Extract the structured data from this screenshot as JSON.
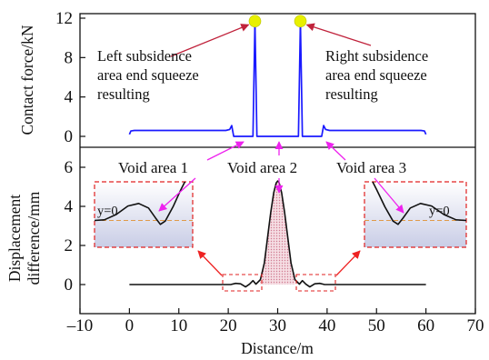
{
  "chart_data": [
    {
      "type": "line",
      "panel": "top",
      "ylabel": "Contact force/kN",
      "ylim": [
        0,
        12
      ],
      "yticks": [
        0,
        4,
        8,
        12
      ],
      "xlim": [
        -10,
        70
      ],
      "series": [
        {
          "color": "#1a1aff",
          "x": [
            0,
            0.3,
            1,
            19.5,
            20.3,
            20.7,
            21.1,
            24.6,
            25.0,
            25.4,
            25.8,
            26.2,
            33.8,
            34.2,
            34.6,
            35.0,
            35.4,
            38.9,
            39.3,
            39.7,
            40.5,
            59,
            59.7,
            60
          ],
          "y": [
            0.2,
            0.55,
            0.6,
            0.6,
            0.7,
            1.1,
            0.0,
            0.0,
            0.0,
            11.7,
            0.0,
            0.0,
            0.0,
            0.0,
            11.7,
            0.0,
            0.0,
            0.0,
            1.1,
            0.7,
            0.6,
            0.6,
            0.55,
            0.2
          ]
        }
      ],
      "markers": [
        {
          "x": 25.4,
          "y": 11.7,
          "color": "#e8f000"
        },
        {
          "x": 34.6,
          "y": 11.7,
          "color": "#e8f000"
        }
      ],
      "annotations": {
        "left_lines": [
          "Left subsidence",
          "area end squeeze",
          "resulting"
        ],
        "right_lines": [
          "Right subsidence",
          "area end squeeze",
          "resulting"
        ],
        "void_labels": [
          "Void area 1",
          "Void area 2",
          "Void area 3"
        ]
      }
    },
    {
      "type": "line",
      "panel": "bottom",
      "xlabel": "Distance/m",
      "ylabel_lines": [
        "Displacement",
        "difference/mm"
      ],
      "xlim": [
        -10,
        70
      ],
      "xticks": [
        -10,
        0,
        10,
        20,
        30,
        40,
        50,
        60,
        70
      ],
      "xtick_labels": [
        "–10",
        "0",
        "10",
        "20",
        "30",
        "40",
        "50",
        "60",
        "70"
      ],
      "ylim": [
        -0.6,
        6
      ],
      "yticks": [
        0,
        2,
        4,
        6
      ],
      "series": [
        {
          "color": "#111111",
          "fill": "#e8b8c4",
          "x": [
            0,
            20.5,
            21.5,
            22.5,
            23.5,
            24.3,
            25,
            25.6,
            26.5,
            27.3,
            28,
            28.6,
            29.2,
            29.7,
            30,
            30.3,
            30.8,
            31.4,
            32,
            32.7,
            33.5,
            34.4,
            35,
            35.7,
            36.5,
            37.5,
            38.5,
            39.5,
            60
          ],
          "y": [
            0,
            0,
            0.06,
            0.04,
            -0.12,
            0.02,
            0.2,
            0.02,
            0.25,
            1.1,
            2.5,
            3.7,
            4.7,
            5.2,
            5.3,
            5.2,
            4.7,
            3.7,
            2.5,
            1.1,
            0.25,
            0.02,
            0.2,
            0.02,
            -0.12,
            0.04,
            0.06,
            0,
            0
          ]
        }
      ],
      "insets": [
        {
          "label": "y=0",
          "side": "left"
        },
        {
          "label": "y=0",
          "side": "right"
        }
      ]
    }
  ]
}
